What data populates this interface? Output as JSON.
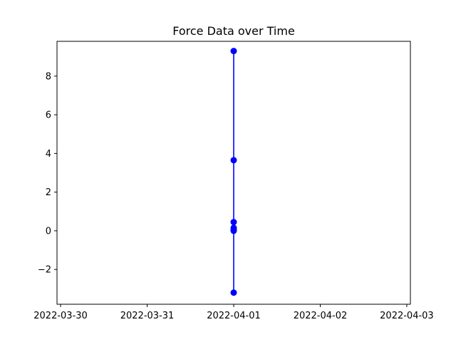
{
  "chart_data": {
    "type": "line",
    "title": "Force Data over Time",
    "xlabel": "",
    "ylabel": "",
    "x_tick_labels": [
      "2022-03-30",
      "2022-03-31",
      "2022-04-01",
      "2022-04-02",
      "2022-04-03"
    ],
    "y_tick_labels": [
      "−2",
      "0",
      "2",
      "4",
      "6",
      "8"
    ],
    "xlim": [
      "2022-03-29T23:00:00",
      "2022-04-03T01:00:00"
    ],
    "ylim": [
      -3.8,
      9.8
    ],
    "grid": false,
    "series": [
      {
        "color": "#0000ff",
        "marker": "circle",
        "x": [
          "2022-04-01",
          "2022-04-01",
          "2022-04-01",
          "2022-04-01",
          "2022-04-01",
          "2022-04-01",
          "2022-04-01"
        ],
        "y": [
          9.3,
          3.65,
          0.45,
          0.15,
          0.05,
          0.0,
          -3.2
        ]
      }
    ]
  }
}
